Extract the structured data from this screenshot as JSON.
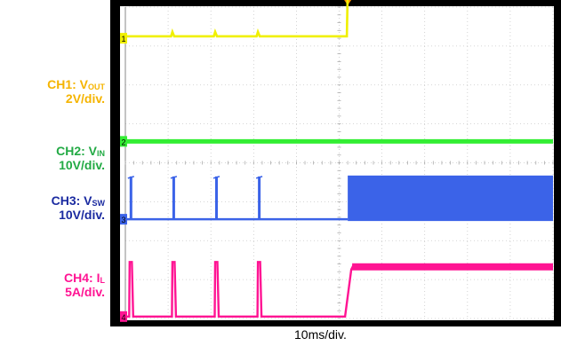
{
  "chart_data": {
    "type": "line",
    "xlabel": "10ms/div.",
    "grid": true,
    "divisions": {
      "x": 10,
      "y": 8
    },
    "time_per_div_ms": 10,
    "x_range_ms": [
      0,
      100
    ],
    "event_time_ms": 52,
    "series": [
      {
        "id": "ch1",
        "label_name": "CH1: V",
        "label_sub": "OUT",
        "label_scale": "2V/div.",
        "color": "#f0f000",
        "label_color": "#f5b400",
        "ground_div": 7.2,
        "unit": "V",
        "volts_per_div": 2,
        "levels": {
          "before": 0.1,
          "after": 12.6
        },
        "ripple_at_ms": [
          11,
          21,
          31
        ]
      },
      {
        "id": "ch2",
        "label_name": "CH2: V",
        "label_sub": "IN",
        "label_scale": "10V/div.",
        "color": "#33ee33",
        "label_color": "#22aa44",
        "ground_div": 4.55,
        "unit": "V",
        "volts_per_div": 10,
        "levels": {
          "before": 0,
          "after": 0
        }
      },
      {
        "id": "ch3",
        "label_name": "CH3: V",
        "label_sub": "SW",
        "label_scale": "10V/div.",
        "color": "#3b63e8",
        "label_color": "#1a2aa0",
        "ground_div": 2.55,
        "unit": "V",
        "volts_per_div": 10,
        "pulses_at_ms": [
          1,
          11,
          21,
          31
        ],
        "pulse_height_v": 11,
        "switching_after_ms": 52
      },
      {
        "id": "ch4",
        "label_name": "CH4: I",
        "label_sub": "L",
        "label_scale": "5A/div.",
        "color": "#ff1493",
        "label_color": "#ff1493",
        "ground_div": 0.05,
        "unit": "A",
        "amps_per_div": 5,
        "pulses_at_ms": [
          1,
          11,
          21,
          31
        ],
        "pulse_height_a": 7,
        "levels": {
          "before": 0,
          "after": 6.5
        }
      }
    ],
    "channel_markers": [
      "1",
      "2",
      "3",
      "4"
    ]
  }
}
